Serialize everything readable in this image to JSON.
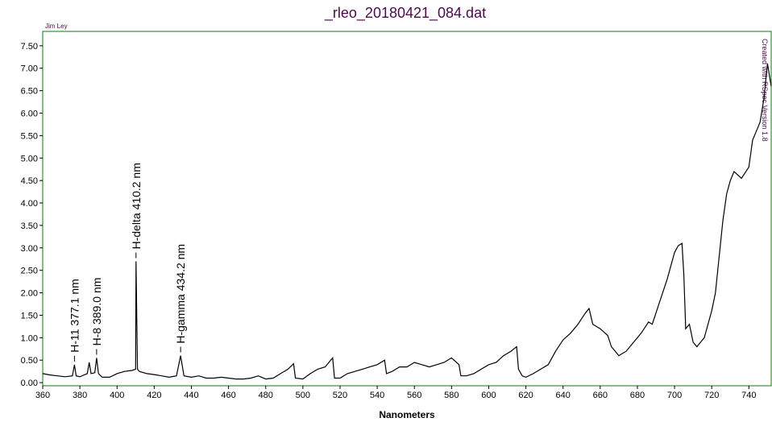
{
  "chart_data": {
    "type": "line",
    "title": "_rleo_20180421_084.dat",
    "xlabel": "Nanometers",
    "corner_note": "Jim Ley",
    "side_note": "Created with RSpec Version 1.8",
    "frame_color": "#008000",
    "title_color": "#4a0a4a",
    "xlim": [
      360,
      752
    ],
    "ylim": [
      -0.07,
      7.82
    ],
    "xticks": [
      360,
      380,
      400,
      420,
      440,
      460,
      480,
      500,
      520,
      540,
      560,
      580,
      600,
      620,
      640,
      660,
      680,
      700,
      720,
      740
    ],
    "yticks": [
      {
        "value": 0,
        "label": "0.00"
      },
      {
        "value": 0.5,
        "label": "0.50"
      },
      {
        "value": 1,
        "label": "1.00"
      },
      {
        "value": 1.5,
        "label": "1.50"
      },
      {
        "value": 2,
        "label": "2.00"
      },
      {
        "value": 2.5,
        "label": "2.50"
      },
      {
        "value": 3,
        "label": "3.00"
      },
      {
        "value": 3.5,
        "label": "3.50"
      },
      {
        "value": 4,
        "label": "4.00"
      },
      {
        "value": 4.5,
        "label": "4.50"
      },
      {
        "value": 5,
        "label": "5.00"
      },
      {
        "value": 5.5,
        "label": "5.50"
      },
      {
        "value": 6,
        "label": "6.00"
      },
      {
        "value": 6.5,
        "label": "6.50"
      },
      {
        "value": 7,
        "label": "7.00"
      },
      {
        "value": 7.5,
        "label": "7.50"
      }
    ],
    "x": [
      360,
      364,
      368,
      372,
      376,
      377.1,
      378,
      380,
      384,
      385,
      386,
      388,
      389,
      390,
      392,
      396,
      400,
      404,
      408,
      410,
      410.2,
      411,
      412,
      416,
      420,
      424,
      428,
      432,
      434.2,
      436,
      440,
      444,
      448,
      452,
      456,
      460,
      464,
      468,
      472,
      476,
      480,
      484,
      488,
      492,
      495,
      496,
      500,
      504,
      508,
      512,
      516,
      517,
      520,
      524,
      528,
      532,
      536,
      540,
      544,
      545,
      548,
      552,
      556,
      560,
      564,
      568,
      572,
      576,
      580,
      584,
      585,
      588,
      592,
      596,
      600,
      604,
      608,
      612,
      615,
      616,
      618,
      620,
      624,
      628,
      632,
      636,
      640,
      644,
      648,
      652,
      654,
      656,
      660,
      664,
      666,
      670,
      674,
      678,
      682,
      686,
      688,
      692,
      696,
      700,
      702,
      704,
      705,
      706,
      708,
      710,
      712,
      714,
      716,
      720,
      722,
      724,
      726,
      728,
      730,
      732,
      736,
      740,
      742,
      744,
      746,
      748,
      750,
      752
    ],
    "series": [
      {
        "color": "#000000",
        "values": [
          0.2,
          0.17,
          0.15,
          0.13,
          0.15,
          0.4,
          0.15,
          0.13,
          0.2,
          0.45,
          0.2,
          0.22,
          0.55,
          0.2,
          0.12,
          0.12,
          0.2,
          0.25,
          0.27,
          0.3,
          2.7,
          0.3,
          0.25,
          0.2,
          0.18,
          0.15,
          0.12,
          0.15,
          0.6,
          0.15,
          0.12,
          0.15,
          0.1,
          0.1,
          0.12,
          0.1,
          0.08,
          0.08,
          0.1,
          0.15,
          0.08,
          0.1,
          0.2,
          0.3,
          0.42,
          0.1,
          0.08,
          0.2,
          0.3,
          0.35,
          0.55,
          0.1,
          0.1,
          0.2,
          0.25,
          0.3,
          0.35,
          0.4,
          0.5,
          0.2,
          0.25,
          0.35,
          0.35,
          0.45,
          0.4,
          0.35,
          0.4,
          0.45,
          0.55,
          0.4,
          0.15,
          0.15,
          0.2,
          0.3,
          0.4,
          0.45,
          0.6,
          0.7,
          0.8,
          0.3,
          0.15,
          0.12,
          0.2,
          0.3,
          0.4,
          0.7,
          0.95,
          1.1,
          1.3,
          1.55,
          1.65,
          1.3,
          1.2,
          1.05,
          0.8,
          0.6,
          0.7,
          0.9,
          1.1,
          1.35,
          1.3,
          1.8,
          2.3,
          2.9,
          3.05,
          3.1,
          2.4,
          1.2,
          1.3,
          0.9,
          0.8,
          0.9,
          1.0,
          1.6,
          2.0,
          2.8,
          3.6,
          4.2,
          4.5,
          4.7,
          4.55,
          4.8,
          5.4,
          5.6,
          5.8,
          6.3,
          7.1,
          6.6
        ]
      }
    ],
    "annotations": [
      {
        "x": 377.1,
        "text": "H-11 377.1 nm"
      },
      {
        "x": 389.0,
        "text": "H-8 389.0 nm"
      },
      {
        "x": 410.2,
        "text": "H-delta 410.2 nm"
      },
      {
        "x": 434.2,
        "text": "H-gamma 434.2 nm"
      }
    ]
  }
}
